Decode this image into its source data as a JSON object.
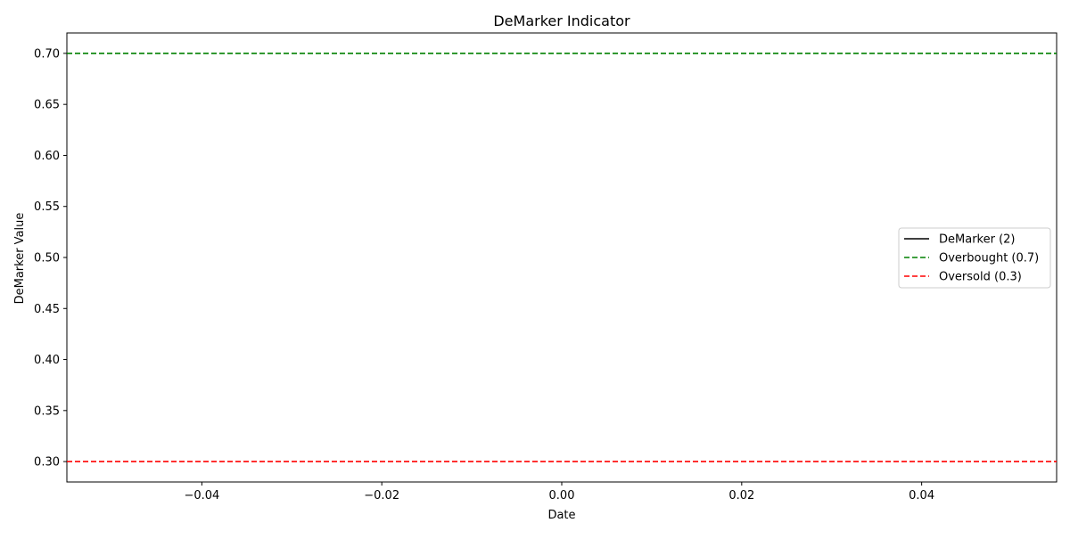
{
  "chart_data": {
    "type": "line",
    "title": "DeMarker Indicator",
    "xlabel": "Date",
    "ylabel": "DeMarker Value",
    "xlim": [
      -0.055,
      0.055
    ],
    "ylim": [
      0.28,
      0.72
    ],
    "x_ticks": [
      -0.04,
      -0.02,
      0.0,
      0.02,
      0.04
    ],
    "x_tick_labels": [
      "−0.04",
      "−0.02",
      "0.00",
      "0.02",
      "0.04"
    ],
    "y_ticks": [
      0.3,
      0.35,
      0.4,
      0.45,
      0.5,
      0.55,
      0.6,
      0.65,
      0.7
    ],
    "y_tick_labels": [
      "0.30",
      "0.35",
      "0.40",
      "0.45",
      "0.50",
      "0.55",
      "0.60",
      "0.65",
      "0.70"
    ],
    "grid": false,
    "legend_position": "center-right",
    "series": [
      {
        "name": "DeMarker (2)",
        "color": "#000000",
        "style": "solid",
        "x": [],
        "values": []
      },
      {
        "name": "Overbought (0.7)",
        "color": "#008000",
        "style": "dashed",
        "hline": 0.7
      },
      {
        "name": "Oversold (0.3)",
        "color": "#ff0000",
        "style": "dashed",
        "hline": 0.3
      }
    ]
  }
}
